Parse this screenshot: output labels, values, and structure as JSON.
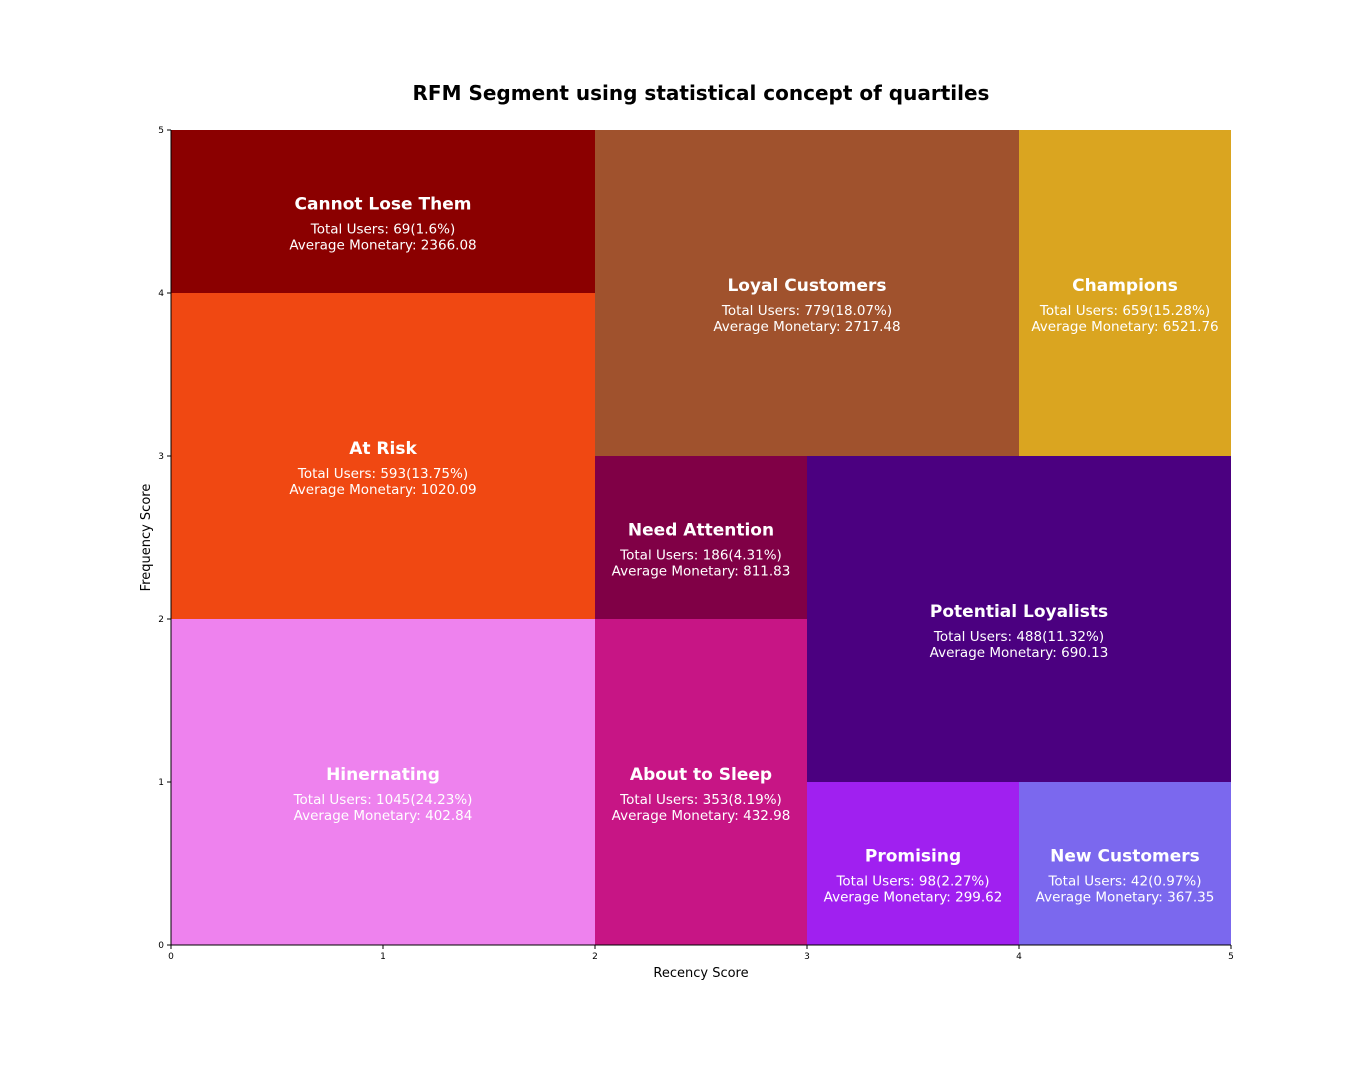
{
  "chart_data": {
    "type": "heatmap",
    "title": "RFM Segment using statistical concept of quartiles",
    "xlabel": "Recency Score",
    "ylabel": "Frequency Score",
    "xlim": [
      0,
      5
    ],
    "ylim": [
      0,
      5
    ],
    "x_ticks": [
      "0",
      "1",
      "2",
      "3",
      "4",
      "5"
    ],
    "y_ticks": [
      "0",
      "1",
      "2",
      "3",
      "4",
      "5"
    ],
    "grid": false,
    "segments": [
      {
        "name": "Cannot Lose Them",
        "x": [
          0,
          2
        ],
        "y": [
          4,
          5
        ],
        "color": "#8b0000",
        "users_text": "Total Users: 69(1.6%)",
        "monetary_text": "Average Monetary: 2366.08",
        "users": 69,
        "percent": 1.6,
        "avg_monetary": 2366.08
      },
      {
        "name": "At Risk",
        "x": [
          0,
          2
        ],
        "y": [
          2,
          4
        ],
        "color": "#f04812",
        "users_text": "Total Users: 593(13.75%)",
        "monetary_text": "Average Monetary: 1020.09",
        "users": 593,
        "percent": 13.75,
        "avg_monetary": 1020.09
      },
      {
        "name": "Hinernating",
        "x": [
          0,
          2
        ],
        "y": [
          0,
          2
        ],
        "color": "#ee82ee",
        "users_text": "Total Users: 1045(24.23%)",
        "monetary_text": "Average Monetary: 402.84",
        "users": 1045,
        "percent": 24.23,
        "avg_monetary": 402.84
      },
      {
        "name": "Loyal Customers",
        "x": [
          2,
          4
        ],
        "y": [
          3,
          5
        ],
        "color": "#a0522d",
        "users_text": "Total Users: 779(18.07%)",
        "monetary_text": "Average Monetary: 2717.48",
        "users": 779,
        "percent": 18.07,
        "avg_monetary": 2717.48
      },
      {
        "name": "Champions",
        "x": [
          4,
          5
        ],
        "y": [
          3,
          5
        ],
        "color": "#daa520",
        "users_text": "Total Users: 659(15.28%)",
        "monetary_text": "Average Monetary: 6521.76",
        "users": 659,
        "percent": 15.28,
        "avg_monetary": 6521.76
      },
      {
        "name": "Need Attention",
        "x": [
          2,
          3
        ],
        "y": [
          2,
          3
        ],
        "color": "#800046",
        "users_text": "Total Users: 186(4.31%)",
        "monetary_text": "Average Monetary: 811.83",
        "users": 186,
        "percent": 4.31,
        "avg_monetary": 811.83
      },
      {
        "name": "About to Sleep",
        "x": [
          2,
          3
        ],
        "y": [
          0,
          2
        ],
        "color": "#c71585",
        "users_text": "Total Users: 353(8.19%)",
        "monetary_text": "Average Monetary: 432.98",
        "users": 353,
        "percent": 8.19,
        "avg_monetary": 432.98
      },
      {
        "name": "Potential Loyalists",
        "x": [
          3,
          5
        ],
        "y": [
          1,
          3
        ],
        "color": "#4b0080",
        "users_text": "Total Users: 488(11.32%)",
        "monetary_text": "Average Monetary: 690.13",
        "users": 488,
        "percent": 11.32,
        "avg_monetary": 690.13
      },
      {
        "name": "Promising",
        "x": [
          3,
          4
        ],
        "y": [
          0,
          1
        ],
        "color": "#a020f0",
        "users_text": "Total Users: 98(2.27%)",
        "monetary_text": "Average Monetary: 299.62",
        "users": 98,
        "percent": 2.27,
        "avg_monetary": 299.62
      },
      {
        "name": "New Customers",
        "x": [
          4,
          5
        ],
        "y": [
          0,
          1
        ],
        "color": "#7b68ee",
        "users_text": "Total Users: 42(0.97%)",
        "monetary_text": "Average Monetary: 367.35",
        "users": 42,
        "percent": 0.97,
        "avg_monetary": 367.35
      }
    ]
  }
}
